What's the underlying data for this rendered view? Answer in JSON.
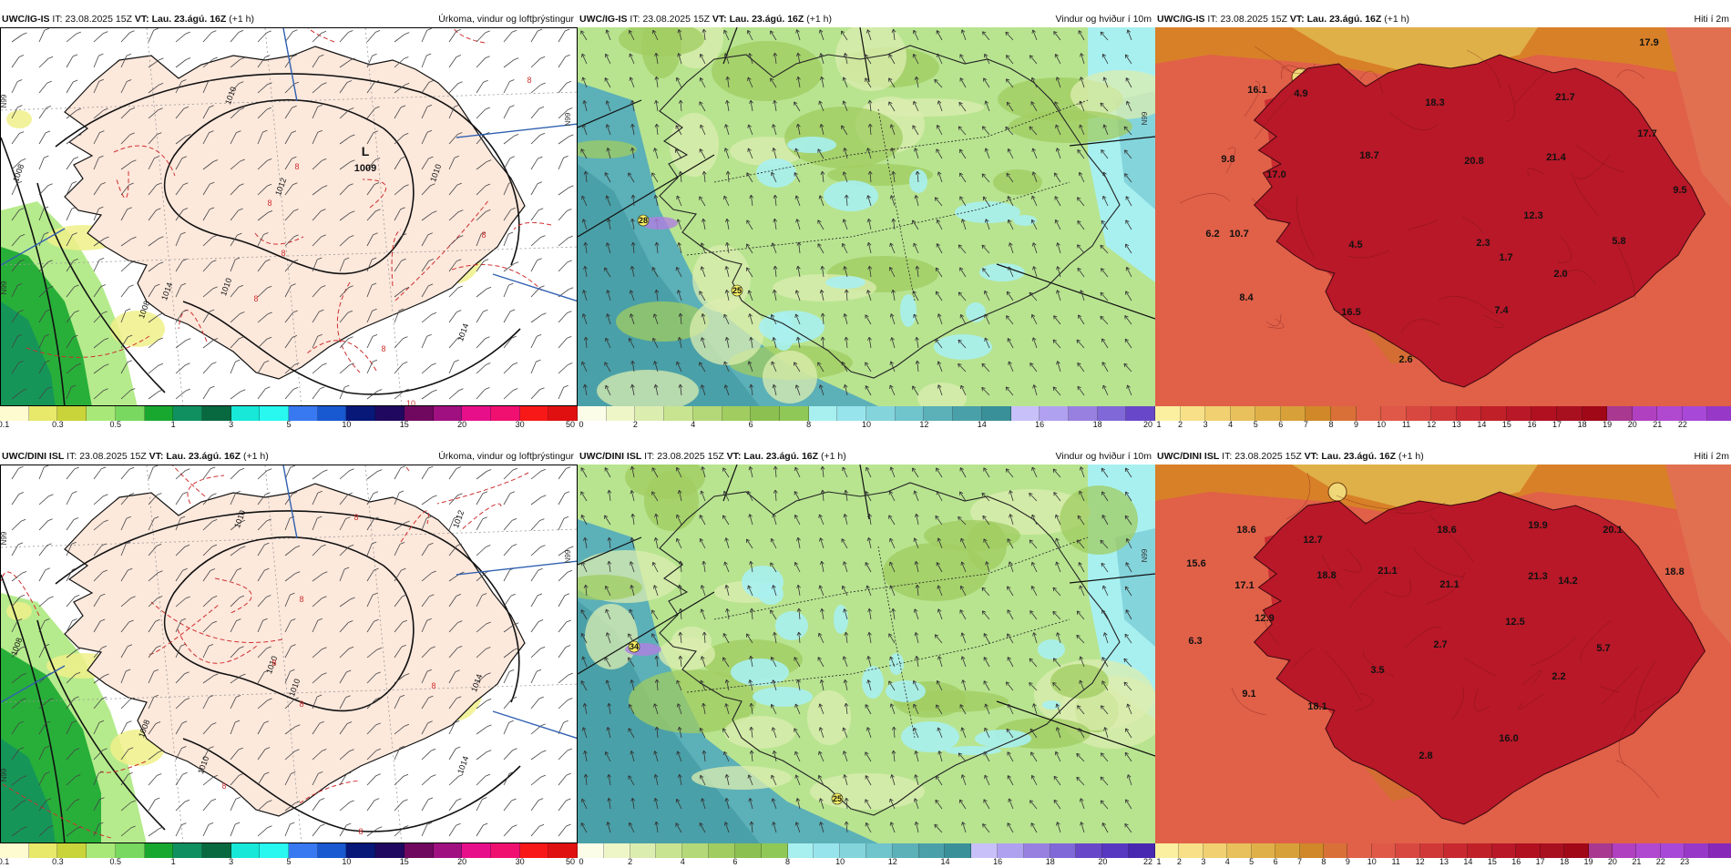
{
  "panels": [
    {
      "id": "igis-precip",
      "model": "UWC/IG-IS",
      "it_label": "IT:",
      "it_value": "23.08.2025 15Z",
      "vt_label": "VT:",
      "vt_value": "Lau. 23.ágú. 16Z",
      "lead": "(+1 h)",
      "title": "Úrkoma, vindur og loftþrýstingur",
      "map_labels": [
        {
          "text": "L",
          "kind": "pressure-low"
        },
        {
          "text": "1009",
          "kind": "pressure-value"
        },
        {
          "text": "1010",
          "kind": "isobar"
        },
        {
          "text": "1010",
          "kind": "isobar"
        },
        {
          "text": "1008",
          "kind": "isobar"
        },
        {
          "text": "1012",
          "kind": "isobar"
        },
        {
          "text": "1014",
          "kind": "isobar"
        },
        {
          "text": "1008",
          "kind": "isobar"
        },
        {
          "text": "1010",
          "kind": "isobar"
        },
        {
          "text": "1014",
          "kind": "isobar"
        },
        {
          "text": "8",
          "kind": "isotherm"
        },
        {
          "text": "8",
          "kind": "isotherm"
        },
        {
          "text": "8",
          "kind": "isotherm"
        },
        {
          "text": "8",
          "kind": "isotherm"
        },
        {
          "text": "8",
          "kind": "isotherm"
        },
        {
          "text": "8",
          "kind": "isotherm"
        },
        {
          "text": "10",
          "kind": "isotherm"
        },
        {
          "text": "8",
          "kind": "isotherm"
        },
        {
          "text": "N99",
          "kind": "lat-tick"
        },
        {
          "text": "N99",
          "kind": "lat-tick"
        },
        {
          "text": "N99",
          "kind": "lat-tick"
        }
      ],
      "colorbar": {
        "colors": [
          "#fffbd0",
          "#e8e86a",
          "#c8d43a",
          "#a8e878",
          "#78d860",
          "#18a830",
          "#109060",
          "#086840",
          "#18e8d8",
          "#28f8f0",
          "#3878f0",
          "#1858d0",
          "#081878",
          "#200860",
          "#700860",
          "#a01080",
          "#e8108a",
          "#f01070",
          "#f81818",
          "#e01010"
        ],
        "labels": [
          "0.1",
          "0.3",
          "0.5",
          "1",
          "3",
          "5",
          "10",
          "15",
          "20",
          "30",
          "50"
        ]
      }
    },
    {
      "id": "igis-wind",
      "model": "UWC/IG-IS",
      "it_label": "IT:",
      "it_value": "23.08.2025 15Z",
      "vt_label": "VT:",
      "vt_value": "Lau. 23.ágú. 16Z",
      "lead": "(+1 h)",
      "title": "Vindur og hviður í 10m",
      "map_labels": [
        {
          "text": "28",
          "kind": "gust-max"
        },
        {
          "text": "25",
          "kind": "gust-max"
        },
        {
          "text": "N99",
          "kind": "lat-tick"
        }
      ],
      "colorbar": {
        "colors": [
          "#fbfde8",
          "#eef6c8",
          "#dcedb0",
          "#c8e490",
          "#b4d878",
          "#a0cc60",
          "#8cc050",
          "#90c858",
          "#a8f0f0",
          "#98e4ec",
          "#84d4dc",
          "#70c4cc",
          "#5cb0b8",
          "#4aa0a8",
          "#3a9098",
          "#c8c0f8",
          "#b0a0f0",
          "#9880e0",
          "#8068d8",
          "#6848c8"
        ],
        "labels": [
          "0",
          "2",
          "4",
          "6",
          "8",
          "10",
          "12",
          "14",
          "16",
          "18",
          "20"
        ]
      }
    },
    {
      "id": "igis-temp",
      "model": "UWC/IG-IS",
      "it_label": "IT:",
      "it_value": "23.08.2025 15Z",
      "vt_label": "VT:",
      "vt_value": "Lau. 23.ágú. 16Z",
      "lead": "(+1 h)",
      "title": "Hiti í 2m",
      "map_labels": [
        {
          "text": "16.1",
          "kind": "temp"
        },
        {
          "text": "4.9",
          "kind": "temp"
        },
        {
          "text": "9.8",
          "kind": "temp"
        },
        {
          "text": "17.0",
          "kind": "temp"
        },
        {
          "text": "6.2",
          "kind": "temp"
        },
        {
          "text": "10.7",
          "kind": "temp"
        },
        {
          "text": "4.5",
          "kind": "temp"
        },
        {
          "text": "8.4",
          "kind": "temp"
        },
        {
          "text": "16.5",
          "kind": "temp"
        },
        {
          "text": "2.6",
          "kind": "temp"
        },
        {
          "text": "18.3",
          "kind": "temp"
        },
        {
          "text": "18.7",
          "kind": "temp"
        },
        {
          "text": "20.8",
          "kind": "temp"
        },
        {
          "text": "2.3",
          "kind": "temp"
        },
        {
          "text": "21.7",
          "kind": "temp"
        },
        {
          "text": "21.4",
          "kind": "temp"
        },
        {
          "text": "17.9",
          "kind": "temp"
        },
        {
          "text": "17.7",
          "kind": "temp"
        },
        {
          "text": "9.5",
          "kind": "temp"
        },
        {
          "text": "12.3",
          "kind": "temp"
        },
        {
          "text": "1.7",
          "kind": "temp"
        },
        {
          "text": "2.0",
          "kind": "temp"
        },
        {
          "text": "5.8",
          "kind": "temp"
        },
        {
          "text": "7.4",
          "kind": "temp"
        }
      ],
      "colorbar": {
        "colors": [
          "#fbf0a0",
          "#f8e088",
          "#f0d070",
          "#e8c05c",
          "#e0b048",
          "#d8a038",
          "#d08828",
          "#d87038",
          "#e06048",
          "#e05848",
          "#d84840",
          "#d03838",
          "#c82830",
          "#c02028",
          "#b81828",
          "#b01020",
          "#a81020",
          "#a00818",
          "#a83890",
          "#b040c0",
          "#b048d0",
          "#a848d8",
          "#9838c8"
        ],
        "labels": [
          "1",
          "2",
          "3",
          "4",
          "5",
          "6",
          "7",
          "8",
          "9",
          "10",
          "11",
          "12",
          "13",
          "14",
          "15",
          "16",
          "17",
          "18",
          "19",
          "20",
          "21",
          "22"
        ]
      }
    },
    {
      "id": "dini-precip",
      "model": "UWC/DINI ISL",
      "it_label": "IT:",
      "it_value": "23.08.2025 15Z",
      "vt_label": "VT:",
      "vt_value": "Lau. 23.ágú. 16Z",
      "lead": "(+1 h)",
      "title": "Úrkoma, vindur og loftþrýstingur",
      "map_labels": [
        {
          "text": "1010",
          "kind": "isobar"
        },
        {
          "text": "1012",
          "kind": "isobar"
        },
        {
          "text": "1008",
          "kind": "isobar"
        },
        {
          "text": "1010",
          "kind": "isobar"
        },
        {
          "text": "1010",
          "kind": "isobar"
        },
        {
          "text": "1014",
          "kind": "isobar"
        },
        {
          "text": "1008",
          "kind": "isobar"
        },
        {
          "text": "1010",
          "kind": "isobar"
        },
        {
          "text": "1014",
          "kind": "isobar"
        },
        {
          "text": "8",
          "kind": "isotherm"
        },
        {
          "text": "8",
          "kind": "isotherm"
        },
        {
          "text": "8",
          "kind": "isotherm"
        },
        {
          "text": "8",
          "kind": "isotherm"
        },
        {
          "text": "8",
          "kind": "isotherm"
        },
        {
          "text": "8",
          "kind": "isotherm"
        },
        {
          "text": "8",
          "kind": "isotherm"
        },
        {
          "text": "N99",
          "kind": "lat-tick"
        },
        {
          "text": "N99",
          "kind": "lat-tick"
        },
        {
          "text": "N99",
          "kind": "lat-tick"
        }
      ],
      "colorbar": {
        "colors": [
          "#fffbd0",
          "#e8e86a",
          "#c8d43a",
          "#a8e878",
          "#78d860",
          "#18a830",
          "#109060",
          "#086840",
          "#18e8d8",
          "#28f8f0",
          "#3878f0",
          "#1858d0",
          "#081878",
          "#200860",
          "#700860",
          "#a01080",
          "#e8108a",
          "#f01070",
          "#f81818",
          "#e01010"
        ],
        "labels": [
          "0.1",
          "0.3",
          "0.5",
          "1",
          "3",
          "5",
          "10",
          "15",
          "20",
          "30",
          "50"
        ]
      }
    },
    {
      "id": "dini-wind",
      "model": "UWC/DINI ISL",
      "it_label": "IT:",
      "it_value": "23.08.2025 15Z",
      "vt_label": "VT:",
      "vt_value": "Lau. 23.ágú. 16Z",
      "lead": "(+1 h)",
      "title": "Vindur og hviður í 10m",
      "map_labels": [
        {
          "text": "34",
          "kind": "gust-max"
        },
        {
          "text": "25",
          "kind": "gust-max"
        },
        {
          "text": "N99",
          "kind": "lat-tick"
        }
      ],
      "colorbar": {
        "colors": [
          "#fbfde8",
          "#eef6c8",
          "#dcedb0",
          "#c8e490",
          "#b4d878",
          "#a0cc60",
          "#8cc050",
          "#90c858",
          "#a8f0f0",
          "#98e4ec",
          "#84d4dc",
          "#70c4cc",
          "#5cb0b8",
          "#4aa0a8",
          "#3a9098",
          "#c8c0f8",
          "#b0a0f0",
          "#9880e0",
          "#8068d8",
          "#6848c8",
          "#5838c0",
          "#4828b0"
        ],
        "labels": [
          "0",
          "2",
          "4",
          "6",
          "8",
          "10",
          "12",
          "14",
          "16",
          "18",
          "20",
          "22"
        ]
      }
    },
    {
      "id": "dini-temp",
      "model": "UWC/DINI ISL",
      "it_label": "IT:",
      "it_value": "23.08.2025 15Z",
      "vt_label": "VT:",
      "vt_value": "Lau. 23.ágú. 16Z",
      "lead": "(+1 h)",
      "title": "Hiti í 2m",
      "map_labels": [
        {
          "text": "18.6",
          "kind": "temp"
        },
        {
          "text": "12.7",
          "kind": "temp"
        },
        {
          "text": "15.6",
          "kind": "temp"
        },
        {
          "text": "17.1",
          "kind": "temp"
        },
        {
          "text": "6.3",
          "kind": "temp"
        },
        {
          "text": "12.9",
          "kind": "temp"
        },
        {
          "text": "3.5",
          "kind": "temp"
        },
        {
          "text": "9.1",
          "kind": "temp"
        },
        {
          "text": "18.1",
          "kind": "temp"
        },
        {
          "text": "2.8",
          "kind": "temp"
        },
        {
          "text": "18.8",
          "kind": "temp"
        },
        {
          "text": "21.1",
          "kind": "temp"
        },
        {
          "text": "18.6",
          "kind": "temp"
        },
        {
          "text": "21.1",
          "kind": "temp"
        },
        {
          "text": "2.7",
          "kind": "temp"
        },
        {
          "text": "19.9",
          "kind": "temp"
        },
        {
          "text": "21.3",
          "kind": "temp"
        },
        {
          "text": "20.1",
          "kind": "temp"
        },
        {
          "text": "14.2",
          "kind": "temp"
        },
        {
          "text": "18.8",
          "kind": "temp"
        },
        {
          "text": "12.5",
          "kind": "temp"
        },
        {
          "text": "2.2",
          "kind": "temp"
        },
        {
          "text": "5.7",
          "kind": "temp"
        },
        {
          "text": "16.0",
          "kind": "temp"
        }
      ],
      "colorbar": {
        "colors": [
          "#fbf0a0",
          "#f8e088",
          "#f0d070",
          "#e8c05c",
          "#e0b048",
          "#d8a038",
          "#d08828",
          "#d87038",
          "#e06048",
          "#e05848",
          "#d84840",
          "#d03838",
          "#c82830",
          "#c02028",
          "#b81828",
          "#b01020",
          "#a81020",
          "#a00818",
          "#a83890",
          "#b040c0",
          "#b048d0",
          "#a848d8",
          "#9838c8",
          "#8828b8"
        ],
        "labels": [
          "1",
          "2",
          "3",
          "4",
          "5",
          "6",
          "7",
          "8",
          "9",
          "10",
          "11",
          "12",
          "13",
          "14",
          "15",
          "16",
          "17",
          "18",
          "19",
          "20",
          "21",
          "22",
          "23"
        ]
      }
    }
  ]
}
